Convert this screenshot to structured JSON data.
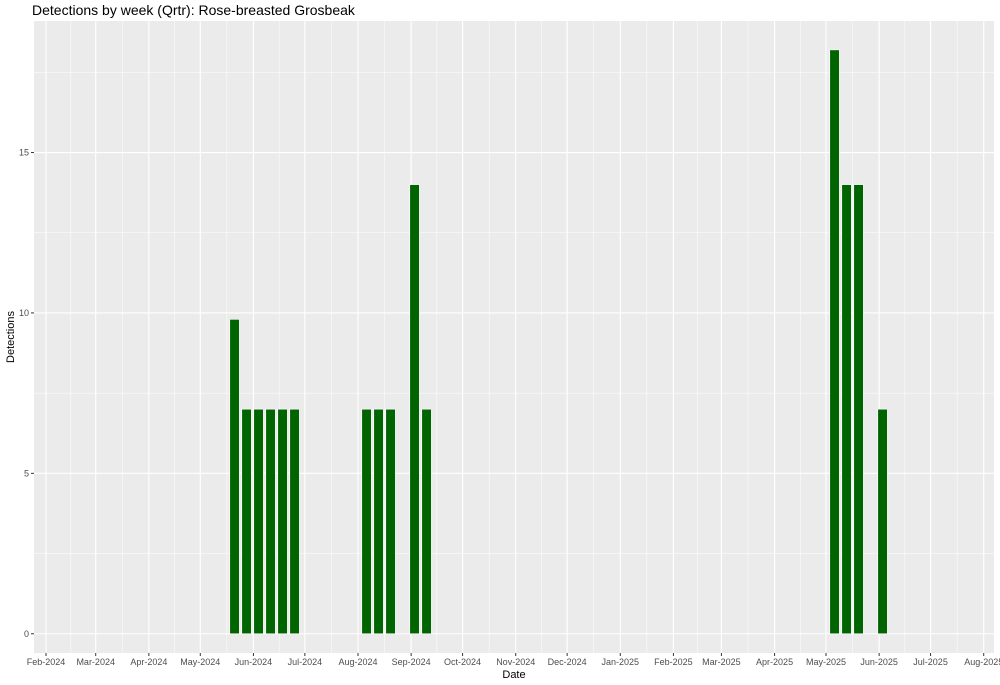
{
  "chart_data": {
    "type": "bar",
    "title": "Detections by week (Qrtr): Rose-breasted Grosbeak",
    "xlabel": "Date",
    "ylabel": "Detections",
    "ylim": [
      -0.6,
      19.1
    ],
    "y_ticks": [
      0,
      5,
      10,
      15
    ],
    "x_ticks": [
      {
        "label": "Feb-2024",
        "date": "2024-02-01"
      },
      {
        "label": "Mar-2024",
        "date": "2024-03-01"
      },
      {
        "label": "Apr-2024",
        "date": "2024-04-01"
      },
      {
        "label": "May-2024",
        "date": "2024-05-01"
      },
      {
        "label": "Jun-2024",
        "date": "2024-06-01"
      },
      {
        "label": "Jul-2024",
        "date": "2024-07-01"
      },
      {
        "label": "Aug-2024",
        "date": "2024-08-01"
      },
      {
        "label": "Sep-2024",
        "date": "2024-09-01"
      },
      {
        "label": "Oct-2024",
        "date": "2024-10-01"
      },
      {
        "label": "Nov-2024",
        "date": "2024-11-01"
      },
      {
        "label": "Dec-2024",
        "date": "2024-12-01"
      },
      {
        "label": "Jan-2025",
        "date": "2025-01-01"
      },
      {
        "label": "Feb-2025",
        "date": "2025-02-01"
      },
      {
        "label": "Mar-2025",
        "date": "2025-03-01"
      },
      {
        "label": "Apr-2025",
        "date": "2025-04-01"
      },
      {
        "label": "May-2025",
        "date": "2025-05-01"
      },
      {
        "label": "Jun-2025",
        "date": "2025-06-01"
      },
      {
        "label": "Jul-2025",
        "date": "2025-07-01"
      },
      {
        "label": "Aug-2025",
        "date": "2025-08-01"
      }
    ],
    "xlim": [
      "2024-01-25",
      "2025-08-07"
    ],
    "bar_width_days": 5.6,
    "bar_color": "#006400",
    "grid": true,
    "bars": [
      {
        "date": "2024-05-21",
        "value": 9.8
      },
      {
        "date": "2024-05-28",
        "value": 7
      },
      {
        "date": "2024-06-04",
        "value": 7
      },
      {
        "date": "2024-06-11",
        "value": 7
      },
      {
        "date": "2024-06-18",
        "value": 7
      },
      {
        "date": "2024-06-25",
        "value": 7
      },
      {
        "date": "2024-08-06",
        "value": 7
      },
      {
        "date": "2024-08-13",
        "value": 7
      },
      {
        "date": "2024-08-20",
        "value": 7
      },
      {
        "date": "2024-09-03",
        "value": 14
      },
      {
        "date": "2024-09-10",
        "value": 7
      },
      {
        "date": "2025-05-06",
        "value": 18.2
      },
      {
        "date": "2025-05-13",
        "value": 14
      },
      {
        "date": "2025-05-20",
        "value": 14
      },
      {
        "date": "2025-06-03",
        "value": 7
      }
    ]
  }
}
